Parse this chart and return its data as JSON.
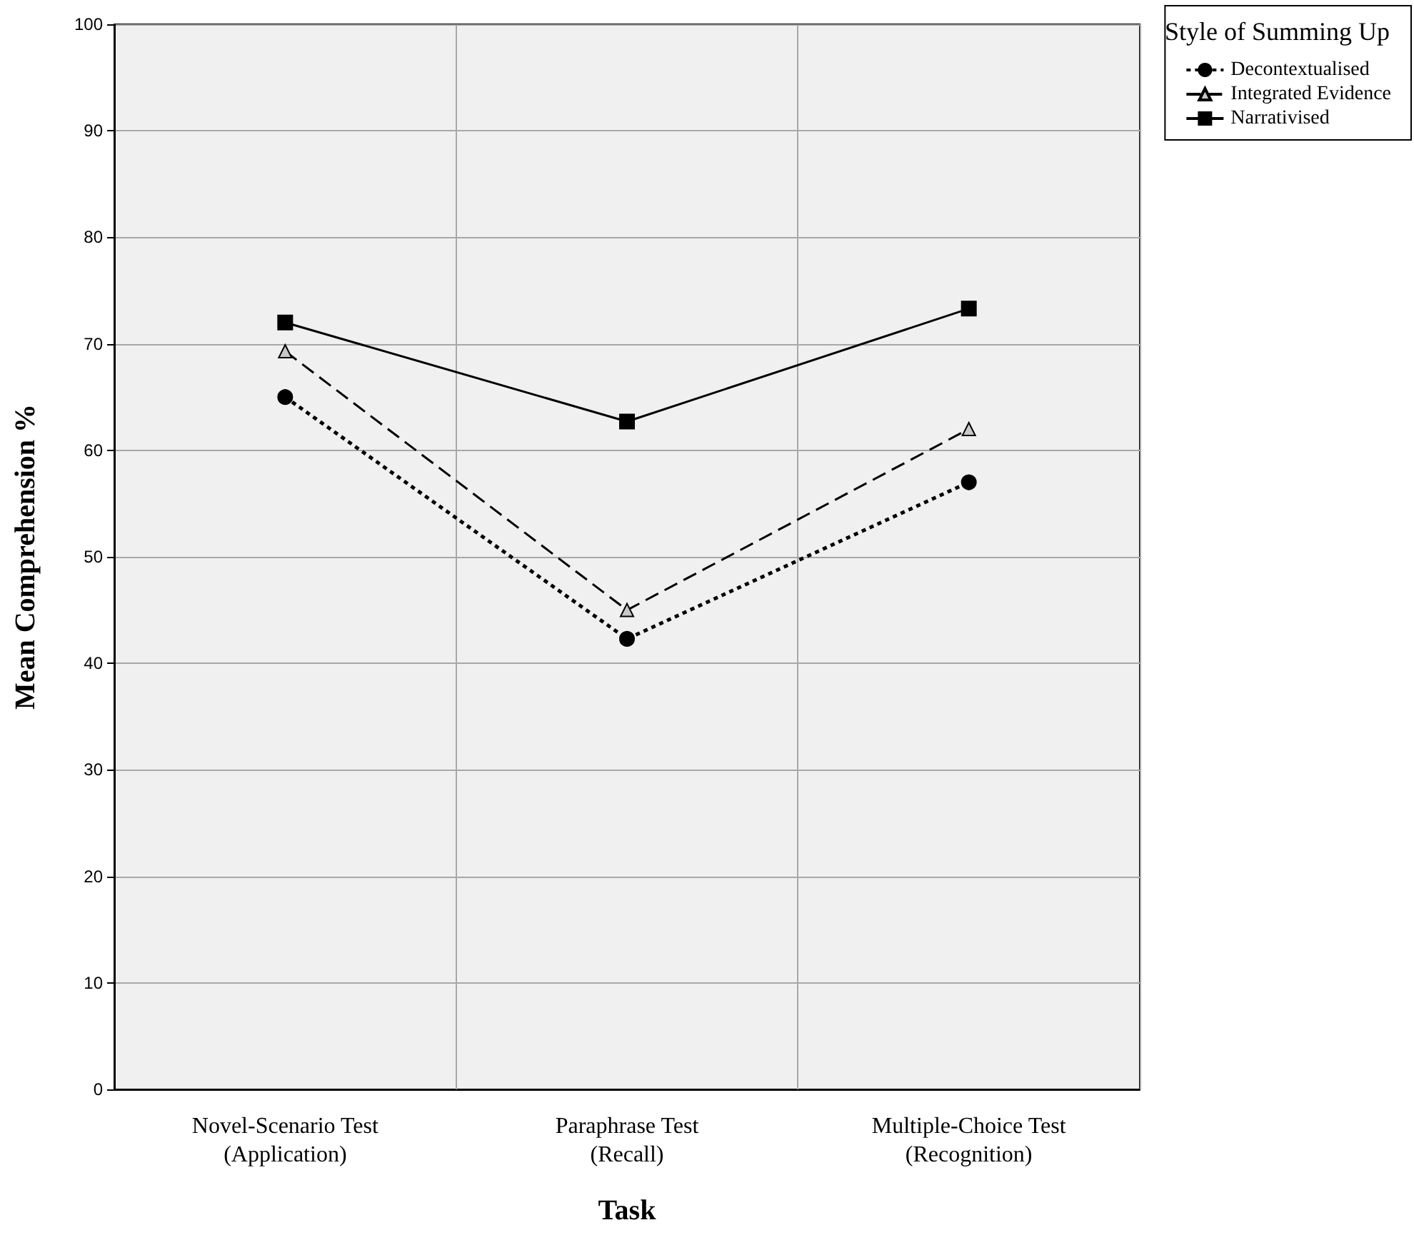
{
  "chart_data": {
    "type": "line",
    "xlabel": "Task",
    "ylabel": "Mean Comprehension %",
    "legend_title": "Style of Summing Up",
    "categories": [
      "Novel-Scenario Test\n(Application)",
      "Paraphrase Test\n(Recall)",
      "Multiple-Choice Test\n(Recognition)"
    ],
    "series": [
      {
        "name": "Decontextualised",
        "color": "#000000",
        "values": [
          65,
          42.3,
          57
        ],
        "marker": "circle",
        "line_style": "dotted"
      },
      {
        "name": "Integrated Evidence",
        "color": "#000000",
        "values": [
          69.3,
          45,
          62
        ],
        "marker": "triangle",
        "line_style": "dashed"
      },
      {
        "name": "Narrativised",
        "color": "#000000",
        "values": [
          72,
          62.7,
          73.3
        ],
        "marker": "square",
        "line_style": "solid"
      }
    ],
    "ylim": [
      0,
      100
    ],
    "yticks": [
      0,
      10,
      20,
      30,
      40,
      50,
      60,
      70,
      80,
      90,
      100
    ],
    "grid": true,
    "legend": "top right"
  }
}
